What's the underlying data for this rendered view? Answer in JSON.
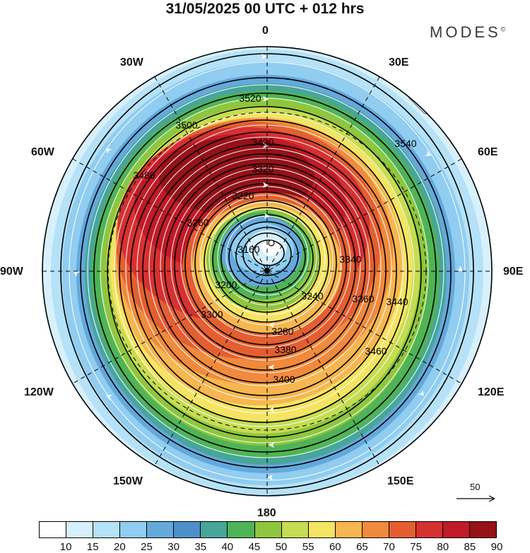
{
  "title": "31/05/2025  00 UTC  + 012 hrs",
  "brand": "MODES",
  "brand_mark": "©",
  "longitude_labels": [
    "0",
    "30E",
    "60E",
    "90E",
    "120E",
    "150E",
    "180",
    "150W",
    "120W",
    "90W",
    "60W",
    "30W"
  ],
  "contour_labels": [
    "3160",
    "3200",
    "3220",
    "3240",
    "3260",
    "3280",
    "3300",
    "3320",
    "3340",
    "3360",
    "3380",
    "3400",
    "3420",
    "3440",
    "3460",
    "3480",
    "3500",
    "3520",
    "3540"
  ],
  "wind_vector_reference": "50",
  "colorbar": {
    "labels": [
      "10",
      "15",
      "20",
      "25",
      "30",
      "35",
      "40",
      "45",
      "50",
      "55",
      "60",
      "65",
      "70",
      "75",
      "80",
      "85",
      "90"
    ],
    "colors": [
      "#ffffff",
      "#d7f0fc",
      "#b5e2f8",
      "#90cdf0",
      "#64a9dc",
      "#4d8fc8",
      "#48a59a",
      "#4fb456",
      "#8ec63f",
      "#c6dc52",
      "#f5e463",
      "#f7b64f",
      "#f08a3c",
      "#e35f31",
      "#d63131",
      "#c01b27",
      "#951219"
    ]
  },
  "field_colors": {
    "outer_blue": "#90cdf0",
    "green": "#4fb456",
    "yellow": "#f5e463",
    "orange": "#f08a3c",
    "red": "#d63131",
    "dark_red": "#c01b27"
  }
}
